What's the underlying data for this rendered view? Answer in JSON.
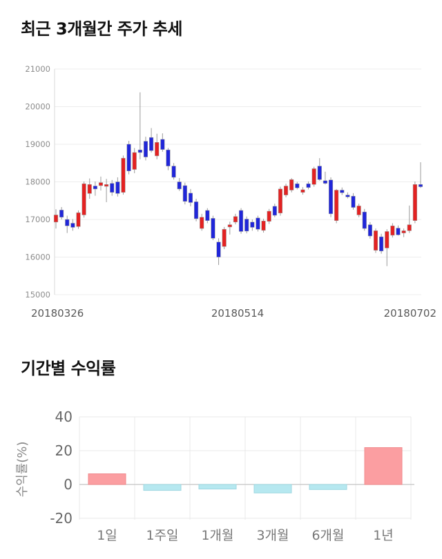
{
  "price_chart": {
    "title": "최근 3개월간 주가 추세"
  },
  "returns_chart": {
    "title": "기간별 수익률"
  },
  "chart_data": [
    {
      "type": "candlestick",
      "title": "최근 3개월간 주가 추세",
      "ylim": [
        15000,
        21000
      ],
      "y_ticks": [
        21000,
        20000,
        19000,
        18000,
        17000,
        16000,
        15000
      ],
      "x_tick_labels": [
        "20180326",
        "20180514",
        "20180702"
      ],
      "grid": true,
      "up_color": "#e32222",
      "down_color": "#2026d9",
      "wick_color": "#999999",
      "grid_color": "#ececec",
      "axis_color": "#d9d9d9",
      "y_tick_color": "#8c8c8c",
      "x_tick_color": "#595959",
      "candles_ohlc": [
        [
          16930,
          17270,
          16760,
          17120
        ],
        [
          17250,
          17330,
          17000,
          17060
        ],
        [
          17000,
          17100,
          16640,
          16830
        ],
        [
          16900,
          17010,
          16700,
          16790
        ],
        [
          16810,
          17240,
          16750,
          17180
        ],
        [
          17120,
          18010,
          17050,
          17950
        ],
        [
          17690,
          18090,
          17550,
          17930
        ],
        [
          17890,
          18010,
          17630,
          17810
        ],
        [
          17900,
          18140,
          17770,
          17980
        ],
        [
          17880,
          18080,
          17460,
          17930
        ],
        [
          17960,
          18050,
          17630,
          17720
        ],
        [
          18000,
          18120,
          17610,
          17690
        ],
        [
          17720,
          18700,
          17660,
          18630
        ],
        [
          19000,
          19090,
          18200,
          18290
        ],
        [
          18330,
          18900,
          18230,
          18780
        ],
        [
          18850,
          20380,
          18600,
          18780
        ],
        [
          19080,
          19200,
          18570,
          18660
        ],
        [
          19180,
          19430,
          18780,
          18830
        ],
        [
          18690,
          19280,
          18600,
          19050
        ],
        [
          19130,
          19290,
          18800,
          18860
        ],
        [
          18850,
          18900,
          18310,
          18420
        ],
        [
          18420,
          18500,
          18060,
          18120
        ],
        [
          18000,
          18100,
          17760,
          17810
        ],
        [
          17900,
          17980,
          17400,
          17480
        ],
        [
          17700,
          17810,
          17350,
          17450
        ],
        [
          17470,
          17550,
          16950,
          17020
        ],
        [
          16760,
          17150,
          16700,
          17060
        ],
        [
          17240,
          17300,
          16900,
          16970
        ],
        [
          17030,
          17100,
          16450,
          16500
        ],
        [
          16400,
          16500,
          15790,
          16000
        ],
        [
          16280,
          16800,
          16210,
          16740
        ],
        [
          16800,
          16940,
          16600,
          16860
        ],
        [
          16930,
          17150,
          16870,
          17080
        ],
        [
          17240,
          17300,
          16620,
          16680
        ],
        [
          17010,
          17080,
          16630,
          16690
        ],
        [
          16930,
          17000,
          16700,
          16790
        ],
        [
          17040,
          17100,
          16680,
          16740
        ],
        [
          16710,
          17020,
          16650,
          16960
        ],
        [
          16950,
          17280,
          16880,
          17220
        ],
        [
          17350,
          17420,
          17060,
          17110
        ],
        [
          17170,
          17870,
          17100,
          17810
        ],
        [
          17650,
          17950,
          17590,
          17890
        ],
        [
          17780,
          18100,
          17720,
          18060
        ],
        [
          17950,
          18000,
          17800,
          17840
        ],
        [
          17720,
          17860,
          17660,
          17790
        ],
        [
          17950,
          18010,
          17800,
          17850
        ],
        [
          17930,
          18400,
          17870,
          18350
        ],
        [
          18420,
          18630,
          18030,
          18060
        ],
        [
          18030,
          18270,
          17930,
          17960
        ],
        [
          18050,
          18120,
          17060,
          17150
        ],
        [
          16970,
          17810,
          16900,
          17780
        ],
        [
          17780,
          17850,
          17650,
          17710
        ],
        [
          17650,
          17720,
          17560,
          17600
        ],
        [
          17620,
          17700,
          17260,
          17320
        ],
        [
          17120,
          17420,
          17060,
          17360
        ],
        [
          17200,
          17280,
          16700,
          16760
        ],
        [
          16860,
          16930,
          16490,
          16560
        ],
        [
          16180,
          16760,
          16110,
          16700
        ],
        [
          16540,
          16620,
          16090,
          16160
        ],
        [
          16240,
          16740,
          15760,
          16680
        ],
        [
          16580,
          16900,
          16520,
          16830
        ],
        [
          16770,
          16840,
          16570,
          16590
        ],
        [
          16640,
          16760,
          16530,
          16700
        ],
        [
          16700,
          17370,
          16640,
          16860
        ],
        [
          16970,
          18010,
          16900,
          17930
        ],
        [
          17930,
          18520,
          17840,
          17870
        ]
      ]
    },
    {
      "type": "bar",
      "title": "기간별 수익률",
      "categories": [
        "1일",
        "1주일",
        "1개월",
        "3개월",
        "6개월",
        "1년"
      ],
      "values": [
        6.3,
        -3.5,
        -2.7,
        -5.0,
        -3.0,
        21.8
      ],
      "ylabel": "수익률(%)",
      "xlabel": "",
      "y_ticks": [
        40,
        20,
        0,
        -20
      ],
      "ylim": [
        -25,
        45
      ],
      "grid": true,
      "legend": "none",
      "pos_color": "#fb9ea1",
      "pos_border": "#f0898c",
      "neg_color": "#b6e8f0",
      "neg_border": "#9ed7e1",
      "grid_color": "#e9e9e9",
      "zero_line_color": "#c4c4c4",
      "y_tick_color": "#666666",
      "x_tick_color": "#777777",
      "ylabel_color": "#888888"
    }
  ]
}
